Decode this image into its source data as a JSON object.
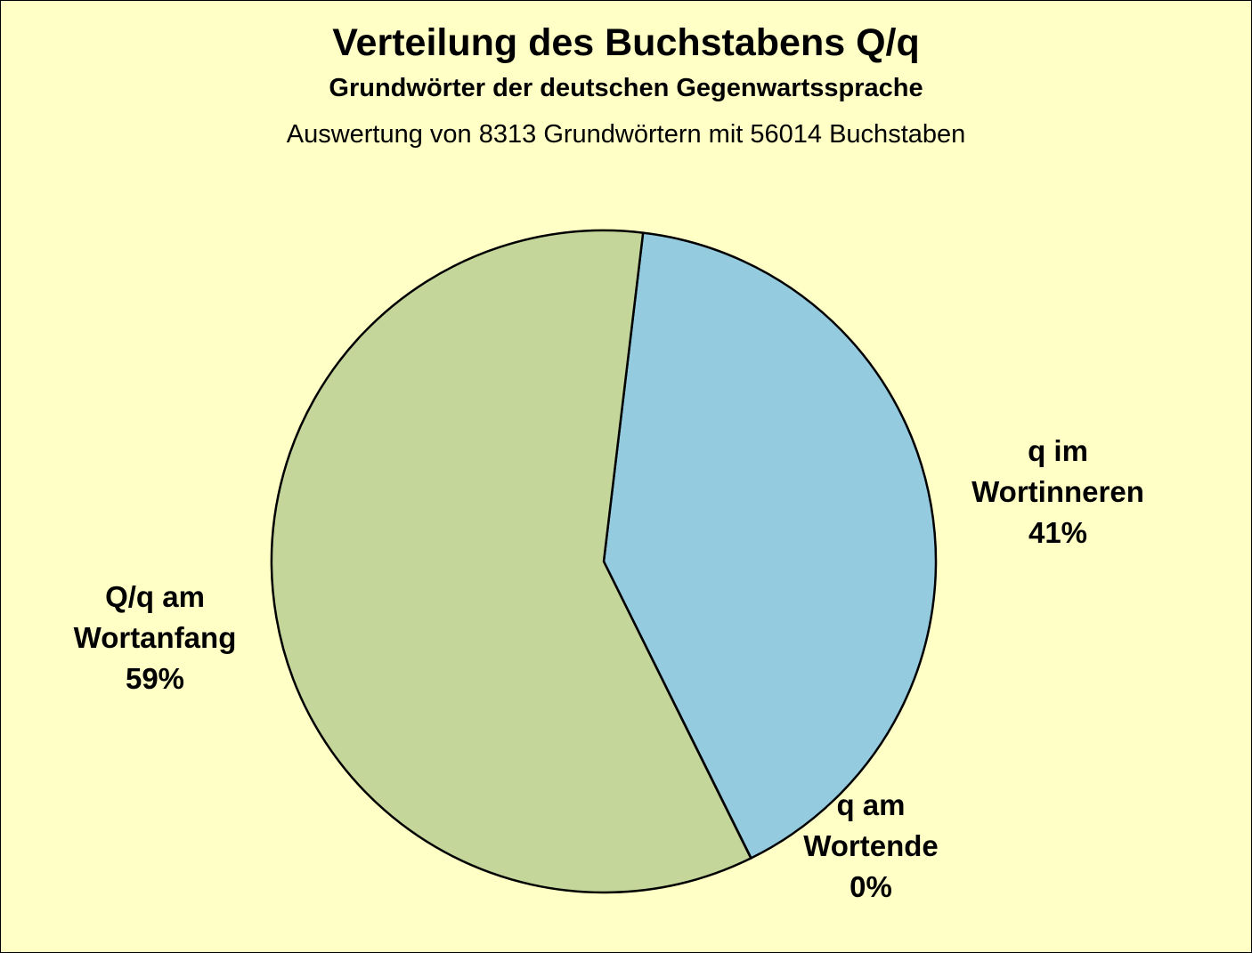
{
  "chart_data": {
    "type": "pie",
    "title": "Verteilung des Buchstabens Q/q",
    "subtitle": "Grundwörter der deutschen Gegenwartssprache",
    "subtitle2": "Auswertung von 8313 Grundwörtern mit 56014 Buchstaben",
    "slices": [
      {
        "label_lines": [
          "q im",
          "Wortinneren"
        ],
        "percent_label": "41%",
        "value": 40.8,
        "color": "#94cbdf"
      },
      {
        "label_lines": [
          "q am",
          "Wortende"
        ],
        "percent_label": "0%",
        "value": 0.01,
        "color": "#94cbdf"
      },
      {
        "label_lines": [
          "Q/q am",
          "Wortanfang"
        ],
        "percent_label": "59%",
        "value": 59.2,
        "color": "#c5d69b"
      }
    ],
    "background": "#ffffc6"
  }
}
